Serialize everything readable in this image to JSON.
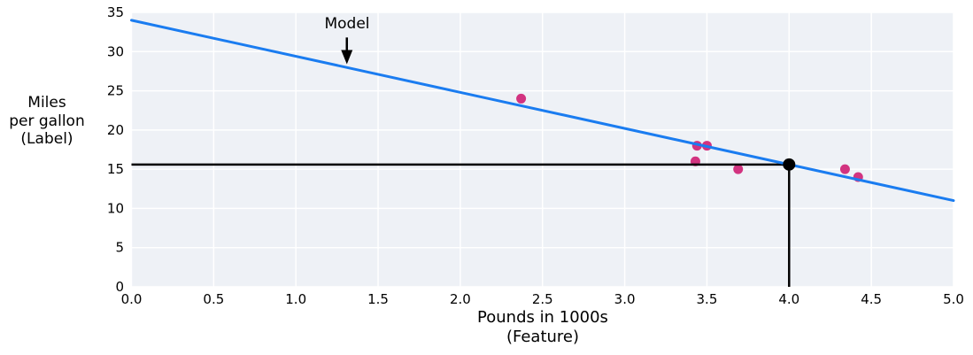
{
  "colors": {
    "plot_bg": "#eef1f6",
    "grid": "#ffffff",
    "model_line": "#1a7cf0",
    "points": "#d23380",
    "prediction": "#000000",
    "text": "#000000"
  },
  "axes": {
    "x_axis": {
      "label_line1": "Pounds in 1000s",
      "label_line2": "(Feature)",
      "ticks": [
        "0.0",
        "0.5",
        "1.0",
        "1.5",
        "2.0",
        "2.5",
        "3.0",
        "3.5",
        "4.0",
        "4.5",
        "5.0"
      ]
    },
    "y_axis": {
      "label_line1": "Miles",
      "label_line2": "per gallon",
      "label_line3": "(Label)",
      "ticks": [
        "0",
        "5",
        "10",
        "15",
        "20",
        "25",
        "30",
        "35"
      ]
    }
  },
  "chart_data": {
    "type": "scatter",
    "title": "",
    "xlabel": "Pounds in 1000s (Feature)",
    "ylabel": "Miles per gallon (Label)",
    "xlim": [
      0.0,
      5.0
    ],
    "ylim": [
      0,
      35
    ],
    "grid": true,
    "legend": false,
    "points": [
      {
        "x": 3.5,
        "y": 18
      },
      {
        "x": 3.69,
        "y": 15
      },
      {
        "x": 3.44,
        "y": 18
      },
      {
        "x": 3.43,
        "y": 16
      },
      {
        "x": 4.34,
        "y": 15
      },
      {
        "x": 4.42,
        "y": 14
      },
      {
        "x": 2.37,
        "y": 24
      }
    ],
    "model_line": {
      "slope": -4.6,
      "intercept": 34,
      "x_start": 0.0,
      "x_end": 5.0,
      "equation": "mpg = 34 - 4.6 * pounds_in_1000s"
    },
    "prediction_point": {
      "x": 4.0,
      "y": 15.6
    },
    "annotation": {
      "text": "Model",
      "text_x": 1.31,
      "text_y": 33.3,
      "arrow_tip_x": 1.31,
      "arrow_tip_y": 28.4,
      "arrow_from_y": 31.8
    }
  }
}
